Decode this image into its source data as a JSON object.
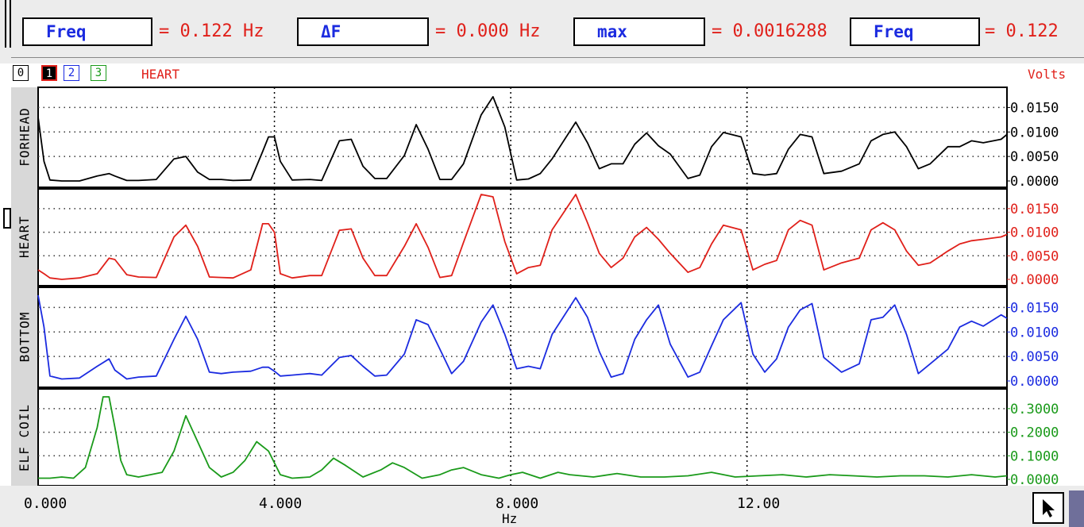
{
  "measurements": [
    {
      "label": "Freq",
      "value": "= 0.122 Hz"
    },
    {
      "label": "ΔF",
      "value": "= 0.000 Hz"
    },
    {
      "label": "max",
      "value": "= 0.0016288"
    },
    {
      "label": "Freq",
      "value": "= 0.122"
    }
  ],
  "channel_selectors": [
    "0",
    "1",
    "2",
    "3"
  ],
  "active_channel_label": "HEART",
  "units_label": "Volts",
  "x_axis": {
    "label": "Hz",
    "ticks": [
      "0.000",
      "4.000",
      "8.000",
      "12.00"
    ]
  },
  "colors": {
    "ch0": "#000000",
    "ch1": "#e0201a",
    "ch2": "#1b2be0",
    "ch3": "#1a9a1a"
  },
  "chart_data": {
    "type": "line",
    "x_unit": "Hz",
    "xlim": [
      0,
      16.4
    ],
    "panels": [
      {
        "name": "FORHEAD",
        "color": "#000000",
        "ticks": [
          "0.0150",
          "0.0100",
          "0.0050",
          "0.0000"
        ],
        "ylim": [
          0,
          0.0175
        ],
        "x": [
          0,
          0.1,
          0.2,
          0.4,
          0.7,
          1,
          1.2,
          1.3,
          1.5,
          1.7,
          2,
          2.3,
          2.5,
          2.7,
          2.9,
          3.1,
          3.3,
          3.6,
          3.8,
          3.9,
          4,
          4.1,
          4.3,
          4.6,
          4.8,
          5.1,
          5.3,
          5.5,
          5.7,
          5.9,
          6.2,
          6.4,
          6.6,
          6.8,
          7,
          7.2,
          7.5,
          7.7,
          7.9,
          8.1,
          8.3,
          8.5,
          8.7,
          9.1,
          9.3,
          9.5,
          9.7,
          9.9,
          10.1,
          10.3,
          10.5,
          10.7,
          11,
          11.2,
          11.4,
          11.6,
          11.9,
          12.1,
          12.3,
          12.5,
          12.7,
          12.9,
          13.1,
          13.3,
          13.6,
          13.9,
          14.1,
          14.3,
          14.5,
          14.7,
          14.9,
          15.1,
          15.4,
          15.6,
          15.8,
          16,
          16.3,
          16.4
        ],
        "y": [
          0.013,
          0.004,
          0.0002,
          0,
          0,
          0.001,
          0.0015,
          0.001,
          0.0001,
          0.0001,
          0.0003,
          0.0045,
          0.005,
          0.0018,
          0.0003,
          0.0003,
          0.0001,
          0.0002,
          0.006,
          0.009,
          0.009,
          0.004,
          0.0002,
          0.0003,
          0.0001,
          0.0082,
          0.0085,
          0.003,
          0.0005,
          0.0005,
          0.0052,
          0.0115,
          0.0065,
          0.0003,
          0.0003,
          0.0035,
          0.0135,
          0.0172,
          0.011,
          0.0002,
          0.0004,
          0.0015,
          0.0045,
          0.012,
          0.0078,
          0.0025,
          0.0035,
          0.0035,
          0.0075,
          0.0098,
          0.0072,
          0.0055,
          0.0005,
          0.0012,
          0.007,
          0.0099,
          0.009,
          0.0015,
          0.0012,
          0.0015,
          0.0065,
          0.0095,
          0.009,
          0.0015,
          0.002,
          0.0035,
          0.0082,
          0.0095,
          0.01,
          0.007,
          0.0025,
          0.0035,
          0.007,
          0.007,
          0.0082,
          0.0078,
          0.0085,
          0.0095
        ]
      },
      {
        "name": "HEART",
        "color": "#e0201a",
        "ticks": [
          "0.0150",
          "0.0100",
          "0.0050",
          "0.0000"
        ],
        "ylim": [
          0,
          0.0175
        ],
        "x": [
          0,
          0.1,
          0.2,
          0.4,
          0.7,
          1,
          1.2,
          1.3,
          1.5,
          1.7,
          2,
          2.3,
          2.5,
          2.7,
          2.9,
          3.1,
          3.3,
          3.6,
          3.8,
          3.9,
          4,
          4.1,
          4.3,
          4.6,
          4.8,
          5.1,
          5.3,
          5.5,
          5.7,
          5.9,
          6.2,
          6.4,
          6.6,
          6.8,
          7,
          7.2,
          7.5,
          7.7,
          7.9,
          8.1,
          8.3,
          8.5,
          8.7,
          9.1,
          9.3,
          9.5,
          9.7,
          9.9,
          10.1,
          10.3,
          10.5,
          10.7,
          11,
          11.2,
          11.4,
          11.6,
          11.9,
          12.1,
          12.3,
          12.5,
          12.7,
          12.9,
          13.1,
          13.3,
          13.6,
          13.9,
          14.1,
          14.3,
          14.5,
          14.7,
          14.9,
          15.1,
          15.4,
          15.6,
          15.8,
          16,
          16.3,
          16.4
        ],
        "y": [
          0.002,
          0.0012,
          0.0003,
          0,
          0.0003,
          0.0012,
          0.0045,
          0.0042,
          0.001,
          0.0005,
          0.0004,
          0.009,
          0.0115,
          0.007,
          0.0005,
          0.0004,
          0.0003,
          0.002,
          0.0118,
          0.0118,
          0.01,
          0.0012,
          0.0003,
          0.0008,
          0.0008,
          0.0104,
          0.0107,
          0.0045,
          0.0008,
          0.0008,
          0.007,
          0.0118,
          0.0068,
          0.0004,
          0.0008,
          0.0078,
          0.018,
          0.0175,
          0.008,
          0.0012,
          0.0025,
          0.003,
          0.0105,
          0.018,
          0.012,
          0.0055,
          0.0025,
          0.0045,
          0.009,
          0.011,
          0.0085,
          0.0055,
          0.0015,
          0.0025,
          0.0075,
          0.0115,
          0.0105,
          0.002,
          0.0032,
          0.004,
          0.0105,
          0.0125,
          0.0115,
          0.002,
          0.0035,
          0.0045,
          0.0105,
          0.012,
          0.0105,
          0.006,
          0.003,
          0.0035,
          0.006,
          0.0075,
          0.0082,
          0.0085,
          0.009,
          0.0095
        ]
      },
      {
        "name": "BOTTOM",
        "color": "#1b2be0",
        "ticks": [
          "0.0150",
          "0.0100",
          "0.0050",
          "0.0000"
        ],
        "ylim": [
          0,
          0.0175
        ],
        "x": [
          0,
          0.1,
          0.2,
          0.4,
          0.7,
          1,
          1.2,
          1.3,
          1.5,
          1.7,
          2,
          2.3,
          2.5,
          2.7,
          2.9,
          3.1,
          3.3,
          3.6,
          3.8,
          3.9,
          4,
          4.1,
          4.3,
          4.6,
          4.8,
          5.1,
          5.3,
          5.5,
          5.7,
          5.9,
          6.2,
          6.4,
          6.6,
          6.8,
          7,
          7.2,
          7.5,
          7.7,
          7.9,
          8.1,
          8.3,
          8.5,
          8.7,
          9.1,
          9.3,
          9.5,
          9.7,
          9.9,
          10.1,
          10.3,
          10.5,
          10.7,
          11,
          11.2,
          11.4,
          11.6,
          11.9,
          12.1,
          12.3,
          12.5,
          12.7,
          12.9,
          13.1,
          13.3,
          13.6,
          13.9,
          14.1,
          14.3,
          14.5,
          14.7,
          14.9,
          15.1,
          15.4,
          15.6,
          15.8,
          16,
          16.3,
          16.4
        ],
        "y": [
          0.0175,
          0.011,
          0.001,
          0.0004,
          0.0006,
          0.003,
          0.0045,
          0.0022,
          0.0004,
          0.0008,
          0.001,
          0.0085,
          0.0132,
          0.0085,
          0.0018,
          0.0015,
          0.0018,
          0.002,
          0.0028,
          0.0028,
          0.002,
          0.001,
          0.0012,
          0.0015,
          0.0012,
          0.0048,
          0.0052,
          0.003,
          0.001,
          0.0012,
          0.0055,
          0.0125,
          0.0115,
          0.0065,
          0.0015,
          0.004,
          0.012,
          0.0155,
          0.0095,
          0.0025,
          0.003,
          0.0025,
          0.0095,
          0.017,
          0.013,
          0.006,
          0.0008,
          0.0015,
          0.0085,
          0.0125,
          0.0155,
          0.0075,
          0.0008,
          0.0018,
          0.0072,
          0.0125,
          0.016,
          0.0055,
          0.0018,
          0.0045,
          0.011,
          0.0145,
          0.0158,
          0.0048,
          0.0018,
          0.0035,
          0.0125,
          0.013,
          0.0155,
          0.0095,
          0.0015,
          0.0035,
          0.0065,
          0.011,
          0.0122,
          0.0112,
          0.0135,
          0.0128
        ]
      },
      {
        "name": "ELF COIL",
        "color": "#1a9a1a",
        "ticks": [
          "0.3000",
          "0.2000",
          "0.1000",
          "0.0000"
        ],
        "ylim": [
          0,
          0.35
        ],
        "x": [
          0,
          0.2,
          0.4,
          0.6,
          0.8,
          1,
          1.1,
          1.2,
          1.3,
          1.4,
          1.5,
          1.7,
          1.9,
          2.1,
          2.3,
          2.5,
          2.7,
          2.9,
          3.1,
          3.3,
          3.5,
          3.7,
          3.9,
          4.1,
          4.3,
          4.6,
          4.8,
          5,
          5.2,
          5.5,
          5.8,
          6,
          6.2,
          6.5,
          6.8,
          7,
          7.2,
          7.5,
          7.8,
          8,
          8.2,
          8.5,
          8.8,
          9,
          9.4,
          9.8,
          10.2,
          10.6,
          11,
          11.4,
          11.8,
          12.2,
          12.6,
          13,
          13.4,
          13.8,
          14.2,
          14.6,
          15,
          15.4,
          15.8,
          16.2,
          16.4
        ],
        "y": [
          0.005,
          0.005,
          0.01,
          0.005,
          0.05,
          0.22,
          0.35,
          0.35,
          0.22,
          0.08,
          0.02,
          0.01,
          0.02,
          0.03,
          0.12,
          0.27,
          0.16,
          0.05,
          0.01,
          0.03,
          0.08,
          0.16,
          0.12,
          0.02,
          0.005,
          0.01,
          0.04,
          0.09,
          0.06,
          0.01,
          0.04,
          0.07,
          0.05,
          0.005,
          0.02,
          0.04,
          0.05,
          0.02,
          0.005,
          0.02,
          0.03,
          0.005,
          0.03,
          0.02,
          0.01,
          0.025,
          0.01,
          0.01,
          0.015,
          0.03,
          0.01,
          0.015,
          0.02,
          0.01,
          0.02,
          0.015,
          0.01,
          0.015,
          0.015,
          0.01,
          0.02,
          0.01,
          0.015
        ]
      }
    ]
  }
}
